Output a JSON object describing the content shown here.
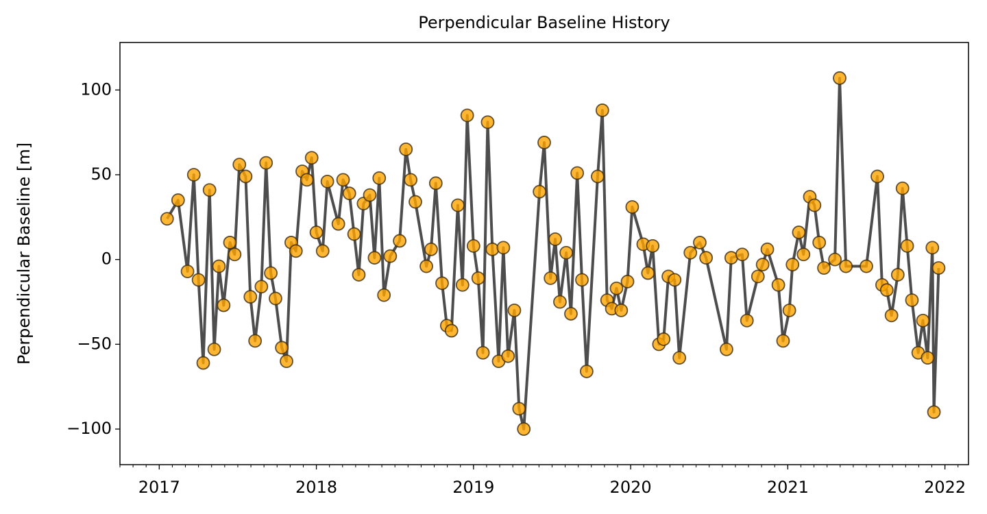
{
  "chart_data": {
    "type": "line",
    "title": "Perpendicular Baseline History",
    "y_label": "Perpendicular Baseline [m]",
    "line_color": "#3a3a3a",
    "marker_color": "#ffa500",
    "marker_edge_color": "#3a2a10",
    "xlim": [
      2016.75,
      2022.15
    ],
    "ylim": [
      -121,
      128
    ],
    "xticks": [
      2017,
      2018,
      2019,
      2020,
      2021,
      2022
    ],
    "yticks": [
      {
        "value": -100,
        "label": "−100"
      },
      {
        "value": -50,
        "label": "−50"
      },
      0,
      50,
      100
    ],
    "x": [
      2017.05,
      2017.12,
      2017.18,
      2017.22,
      2017.25,
      2017.28,
      2017.32,
      2017.35,
      2017.38,
      2017.41,
      2017.45,
      2017.48,
      2017.51,
      2017.55,
      2017.58,
      2017.61,
      2017.65,
      2017.68,
      2017.71,
      2017.74,
      2017.78,
      2017.81,
      2017.84,
      2017.87,
      2017.91,
      2017.94,
      2017.97,
      2018.0,
      2018.04,
      2018.07,
      2018.14,
      2018.17,
      2018.21,
      2018.24,
      2018.27,
      2018.3,
      2018.34,
      2018.37,
      2018.4,
      2018.43,
      2018.47,
      2018.53,
      2018.57,
      2018.6,
      2018.63,
      2018.7,
      2018.73,
      2018.76,
      2018.8,
      2018.83,
      2018.86,
      2018.9,
      2018.93,
      2018.96,
      2019.0,
      2019.03,
      2019.06,
      2019.09,
      2019.12,
      2019.16,
      2019.19,
      2019.22,
      2019.26,
      2019.29,
      2019.32,
      2019.42,
      2019.45,
      2019.49,
      2019.52,
      2019.55,
      2019.59,
      2019.62,
      2019.66,
      2019.69,
      2019.72,
      2019.79,
      2019.82,
      2019.85,
      2019.88,
      2019.91,
      2019.94,
      2019.98,
      2020.01,
      2020.08,
      2020.11,
      2020.14,
      2020.18,
      2020.21,
      2020.24,
      2020.28,
      2020.31,
      2020.38,
      2020.44,
      2020.48,
      2020.61,
      2020.64,
      2020.71,
      2020.74,
      2020.81,
      2020.84,
      2020.87,
      2020.94,
      2020.97,
      2021.01,
      2021.03,
      2021.07,
      2021.1,
      2021.14,
      2021.17,
      2021.2,
      2021.23,
      2021.3,
      2021.33,
      2021.37,
      2021.5,
      2021.57,
      2021.6,
      2021.63,
      2021.66,
      2021.7,
      2021.73,
      2021.76,
      2021.79,
      2021.83,
      2021.86,
      2021.89,
      2021.92,
      2021.93,
      2021.96
    ],
    "values": [
      24,
      35,
      -7,
      50,
      -12,
      -61,
      41,
      -53,
      -4,
      -27,
      10,
      3,
      56,
      49,
      -22,
      -48,
      -16,
      57,
      -8,
      -23,
      -52,
      -60,
      10,
      5,
      52,
      47,
      60,
      16,
      5,
      46,
      21,
      47,
      39,
      15,
      -9,
      33,
      38,
      1,
      48,
      -21,
      2,
      11,
      65,
      47,
      34,
      -4,
      6,
      45,
      -14,
      -39,
      -42,
      32,
      -15,
      85,
      8,
      -11,
      -55,
      81,
      6,
      -60,
      7,
      -57,
      -30,
      -88,
      -100,
      40,
      69,
      -11,
      12,
      -25,
      4,
      -32,
      51,
      -12,
      -66,
      49,
      88,
      -24,
      -29,
      -17,
      -30,
      -13,
      31,
      9,
      -8,
      8,
      -50,
      -47,
      -10,
      -12,
      -58,
      4,
      10,
      1,
      -53,
      1,
      3,
      -36,
      -10,
      -3,
      6,
      -15,
      -48,
      -30,
      -3,
      16,
      3,
      37,
      32,
      10,
      -5,
      0,
      107,
      -4,
      -4,
      49,
      -15,
      -18,
      -33,
      -9,
      42,
      8,
      -24,
      -55,
      -36,
      -58,
      7,
      -90,
      -5
    ]
  }
}
